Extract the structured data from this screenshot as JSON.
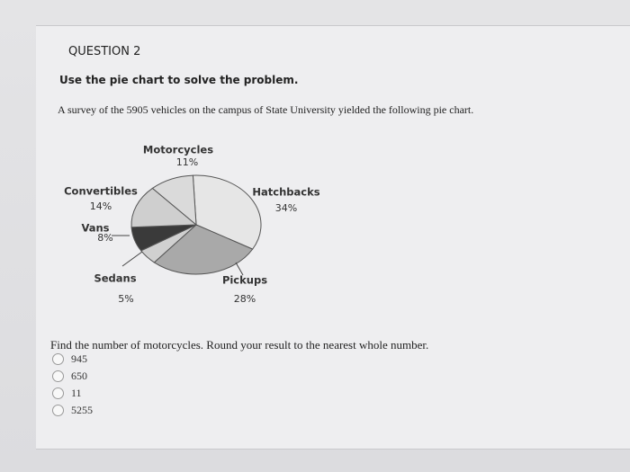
{
  "question": {
    "number": "QUESTION 2",
    "instruction": "Use the pie chart to solve the problem.",
    "survey": "A survey of the 5905 vehicles on the campus of State University yielded the following pie chart.",
    "prompt": "Find the number of motorcycles. Round your result to the nearest whole number.",
    "options": [
      "945",
      "650",
      "11",
      "5255"
    ]
  },
  "chart_data": {
    "type": "pie",
    "categories": [
      "Hatchbacks",
      "Pickups",
      "Sedans",
      "Vans",
      "Convertibles",
      "Motorcycles"
    ],
    "values": [
      34,
      28,
      5,
      8,
      14,
      11
    ],
    "value_labels": [
      "34%",
      "28%",
      "5%",
      "8%",
      "14%",
      "11%"
    ],
    "colors": [
      "#e6e6e6",
      "#a9a9a9",
      "#d0d0d0",
      "#3a3a3a",
      "#cfcfcf",
      "#dadada"
    ]
  }
}
